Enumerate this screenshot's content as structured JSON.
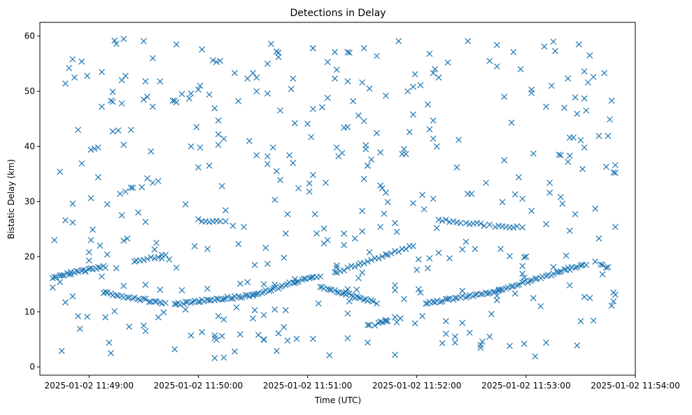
{
  "chart_data": {
    "type": "scatter",
    "title": "Detections in Delay",
    "xlabel": "Time (UTC)",
    "ylabel": "Bistatic Delay (km)",
    "x_tick_labels": [
      "2025-01-02 11:49:00",
      "2025-01-02 11:50:00",
      "2025-01-02 11:51:00",
      "2025-01-02 11:52:00",
      "2025-01-02 11:53:00",
      "2025-01-02 11:54:00"
    ],
    "y_ticks": [
      0,
      10,
      20,
      30,
      40,
      50,
      60
    ],
    "xlim": [
      "2025-01-02 11:48:33",
      "2025-01-02 11:54:00"
    ],
    "ylim": [
      -1.5,
      62.5
    ],
    "grid": false,
    "marker": "x",
    "colors": {
      "series": "#1f77b4",
      "axis": "#000000",
      "background": "#ffffff"
    },
    "series": [
      {
        "name": "",
        "points": []
      }
    ]
  }
}
